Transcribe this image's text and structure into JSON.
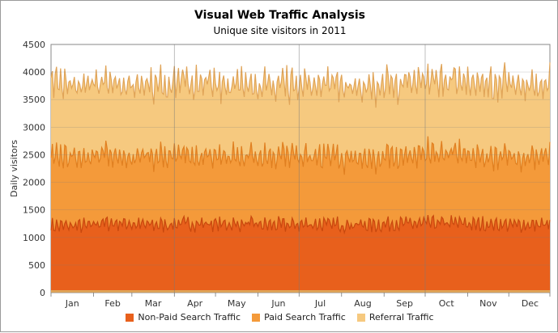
{
  "chart_data": {
    "type": "area",
    "stacked": true,
    "title": "Visual Web Traffic Analysis",
    "subtitle": "Unique site visitors in 2011",
    "ylabel": "Daily visitors",
    "xlabel": "",
    "ylim": [
      0,
      4500
    ],
    "yticks": [
      0,
      500,
      1000,
      1500,
      2000,
      2500,
      3000,
      3500,
      4000,
      4500
    ],
    "months": [
      "Jan",
      "Feb",
      "Mar",
      "Apr",
      "May",
      "Jun",
      "Jul",
      "Aug",
      "Sep",
      "Oct",
      "Nov",
      "Dec"
    ],
    "grid": true,
    "legend_position": "bottom",
    "series": [
      {
        "name": "Non-Paid Search Traffic",
        "color": "#e8601c",
        "line_color": "#c8480e",
        "monthly_avg": [
          1210,
          1260,
          1230,
          1250,
          1240,
          1230,
          1240,
          1230,
          1250,
          1260,
          1240,
          1230
        ]
      },
      {
        "name": "Paid Search Traffic",
        "color": "#f49a3a",
        "line_color": "#e07f20",
        "monthly_avg": [
          1250,
          1230,
          1240,
          1220,
          1230,
          1250,
          1220,
          1210,
          1230,
          1250,
          1240,
          1230
        ]
      },
      {
        "name": "Referral Traffic",
        "color": "#f6c97f",
        "line_color": "#e0a458",
        "monthly_avg": [
          1300,
          1330,
          1310,
          1320,
          1310,
          1290,
          1320,
          1300,
          1310,
          1330,
          1320,
          1300
        ]
      }
    ]
  }
}
